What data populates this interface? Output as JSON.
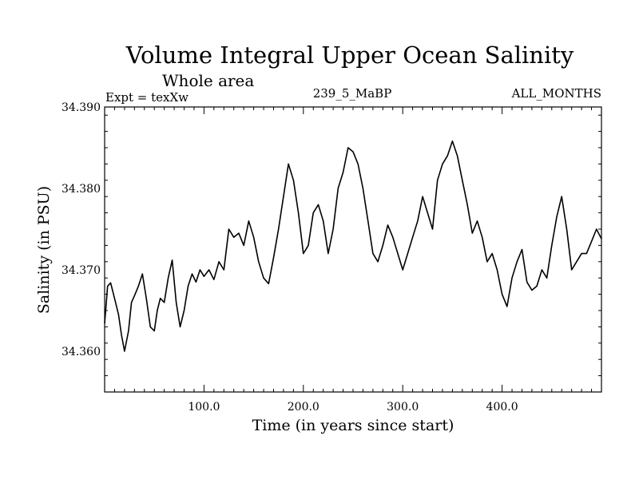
{
  "chart_data": {
    "type": "line",
    "title": "Volume Integral Upper Ocean Salinity",
    "subtitle": "Whole area",
    "experiment_label": "Expt = texXw",
    "run_label": "239_5_MaBP",
    "months_label": "ALL_MONTHS",
    "xlabel": "Time (in years since start)",
    "ylabel": "Salinity (in PSU)",
    "xlim": [
      0,
      500
    ],
    "ylim": [
      34.355,
      34.39
    ],
    "x_ticks": [
      {
        "value": 100,
        "label": "100.0"
      },
      {
        "value": 200,
        "label": "200.0"
      },
      {
        "value": 300,
        "label": "300.0"
      },
      {
        "value": 400,
        "label": "400.0"
      }
    ],
    "y_ticks": [
      {
        "value": 34.36,
        "label": "34.360"
      },
      {
        "value": 34.37,
        "label": "34.370"
      },
      {
        "value": 34.38,
        "label": "34.380"
      },
      {
        "value": 34.39,
        "label": "34.390"
      }
    ],
    "grid": false,
    "series": [
      {
        "name": "Salinity",
        "color": "#000000",
        "x": [
          0,
          3,
          6,
          10,
          14,
          17,
          20,
          24,
          27,
          30,
          34,
          38,
          42,
          46,
          50,
          53,
          56,
          60,
          64,
          68,
          72,
          76,
          80,
          84,
          88,
          92,
          96,
          100,
          105,
          110,
          115,
          120,
          125,
          130,
          135,
          140,
          145,
          150,
          155,
          160,
          165,
          170,
          175,
          180,
          185,
          190,
          195,
          200,
          205,
          210,
          215,
          220,
          225,
          230,
          235,
          240,
          245,
          250,
          255,
          260,
          265,
          270,
          275,
          280,
          285,
          290,
          295,
          300,
          305,
          310,
          315,
          320,
          325,
          330,
          335,
          340,
          345,
          350,
          355,
          360,
          365,
          370,
          375,
          380,
          385,
          390,
          395,
          400,
          405,
          410,
          415,
          420,
          425,
          430,
          435,
          440,
          445,
          450,
          455,
          460,
          465,
          470,
          475,
          480,
          485,
          490,
          495,
          500
        ],
        "values": [
          34.3634,
          34.368,
          34.3684,
          34.3665,
          34.3645,
          34.362,
          34.36,
          34.3625,
          34.366,
          34.3668,
          34.368,
          34.3695,
          34.3665,
          34.363,
          34.3625,
          34.365,
          34.3665,
          34.366,
          34.369,
          34.3712,
          34.366,
          34.363,
          34.365,
          34.368,
          34.3695,
          34.3685,
          34.37,
          34.3692,
          34.37,
          34.3688,
          34.371,
          34.37,
          34.375,
          34.374,
          34.3745,
          34.373,
          34.376,
          34.374,
          34.371,
          34.369,
          34.3683,
          34.3715,
          34.375,
          34.379,
          34.383,
          34.381,
          34.377,
          34.372,
          34.373,
          34.377,
          34.378,
          34.376,
          34.372,
          34.375,
          34.38,
          34.382,
          34.385,
          34.3845,
          34.383,
          34.38,
          34.376,
          34.372,
          34.371,
          34.373,
          34.3755,
          34.374,
          34.372,
          34.37,
          34.372,
          34.374,
          34.376,
          34.379,
          34.377,
          34.375,
          34.381,
          34.383,
          34.384,
          34.3858,
          34.384,
          34.381,
          34.378,
          34.3745,
          34.376,
          34.374,
          34.371,
          34.372,
          34.37,
          34.367,
          34.3655,
          34.369,
          34.371,
          34.3725,
          34.3685,
          34.3675,
          34.368,
          34.37,
          34.369,
          34.373,
          34.3765,
          34.379,
          34.375,
          34.37,
          34.371,
          34.372,
          34.372,
          34.3735,
          34.375,
          34.3738
        ]
      }
    ]
  }
}
